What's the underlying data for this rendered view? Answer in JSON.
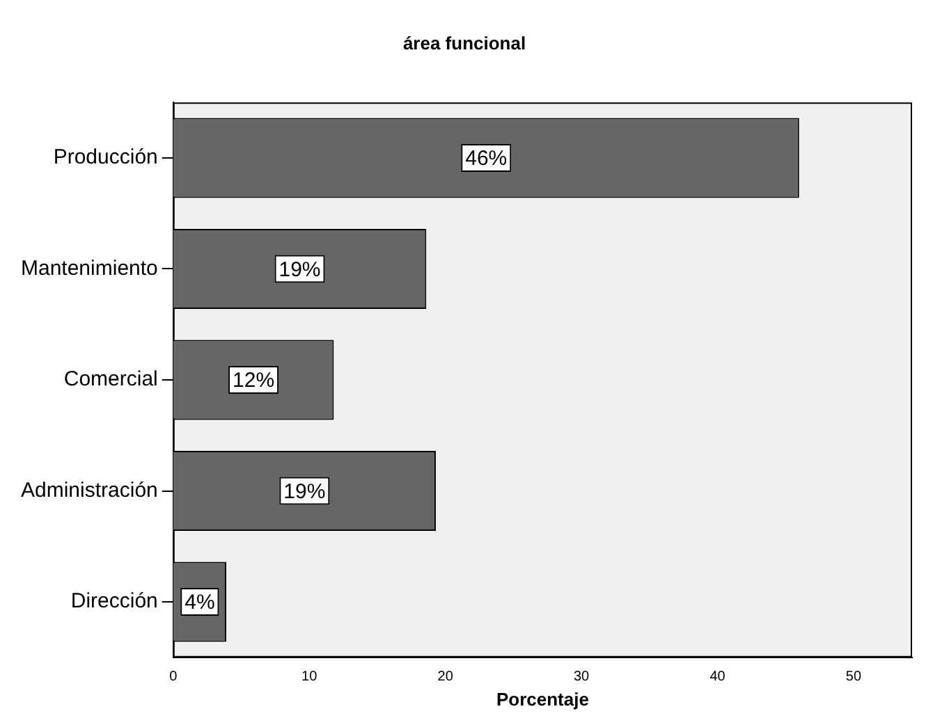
{
  "chart_data": {
    "type": "bar",
    "orientation": "horizontal",
    "title": "área funcional",
    "xlabel": "Porcentaje",
    "categories": [
      "Producción",
      "Mantenimiento",
      "Comercial",
      "Administración",
      "Dirección"
    ],
    "values": [
      46,
      18.6,
      11.8,
      19.3,
      3.9
    ],
    "value_labels": [
      "46%",
      "19%",
      "12%",
      "19%",
      "4%"
    ],
    "color": "#666666",
    "xlim": [
      0,
      54.3
    ],
    "xticks": [
      0,
      10,
      20,
      30,
      40,
      50
    ],
    "grid": false,
    "legend": false
  }
}
